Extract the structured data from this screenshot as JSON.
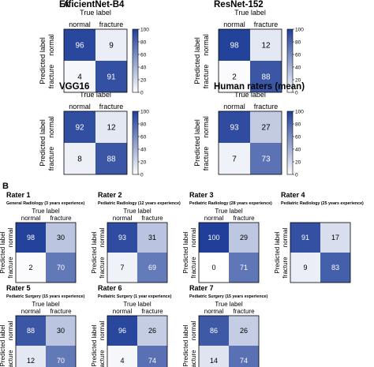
{
  "panels": {
    "a": "A",
    "b": "B"
  },
  "colors": {
    "low": "#ffffff",
    "high": "#1f3f99"
  },
  "chart_data": [
    {
      "type": "heatmap",
      "title": "EfficientNet-B4",
      "xlabel": "True label",
      "ylabel": "Predicted label",
      "x_categories": [
        "normal",
        "fracture"
      ],
      "y_categories": [
        "normal",
        "fracture"
      ],
      "values": [
        [
          96,
          9
        ],
        [
          4,
          91
        ]
      ],
      "colorbar_ticks": [
        0,
        20,
        40,
        60,
        80,
        100
      ],
      "vlim": [
        0,
        100
      ]
    },
    {
      "type": "heatmap",
      "title": "ResNet-152",
      "xlabel": "True label",
      "ylabel": "Predicted label",
      "x_categories": [
        "normal",
        "fracture"
      ],
      "y_categories": [
        "normal",
        "fracture"
      ],
      "values": [
        [
          98,
          12
        ],
        [
          2,
          88
        ]
      ],
      "colorbar_ticks": [
        0,
        20,
        40,
        60,
        80,
        100
      ],
      "vlim": [
        0,
        100
      ]
    },
    {
      "type": "heatmap",
      "title": "VGG16",
      "xlabel": "True label",
      "ylabel": "Predicted label",
      "x_categories": [
        "normal",
        "fracture"
      ],
      "y_categories": [
        "normal",
        "fracture"
      ],
      "values": [
        [
          92,
          12
        ],
        [
          8,
          88
        ]
      ],
      "colorbar_ticks": [
        0,
        20,
        40,
        60,
        80,
        100
      ],
      "vlim": [
        0,
        100
      ]
    },
    {
      "type": "heatmap",
      "title": "Human raters (mean)",
      "xlabel": "True label",
      "ylabel": "Predicted label",
      "x_categories": [
        "normal",
        "fracture"
      ],
      "y_categories": [
        "normal",
        "fracture"
      ],
      "values": [
        [
          93,
          27
        ],
        [
          7,
          73
        ]
      ],
      "colorbar_ticks": [
        0,
        20,
        40,
        60,
        80,
        100
      ],
      "vlim": [
        0,
        100
      ]
    },
    {
      "type": "heatmap",
      "title": "Rater 1",
      "subtitle": "General Radiology (3 years experience)",
      "xlabel": "True label",
      "ylabel": "Predicted label",
      "x_categories": [
        "normal",
        "fracture"
      ],
      "y_categories": [
        "normal",
        "fracture"
      ],
      "values": [
        [
          98,
          30
        ],
        [
          2,
          70
        ]
      ],
      "vlim": [
        0,
        100
      ]
    },
    {
      "type": "heatmap",
      "title": "Rater 2",
      "subtitle": "Pediatric Radiology (12 years experience)",
      "xlabel": "True label",
      "ylabel": "Predicted label",
      "x_categories": [
        "normal",
        "fracture"
      ],
      "y_categories": [
        "normal",
        "fracture"
      ],
      "values": [
        [
          93,
          31
        ],
        [
          7,
          69
        ]
      ],
      "vlim": [
        0,
        100
      ]
    },
    {
      "type": "heatmap",
      "title": "Rater 3",
      "subtitle": "Pediatric Radiology (28 years experience)",
      "xlabel": "True label",
      "ylabel": "Predicted label",
      "x_categories": [
        "normal",
        "fracture"
      ],
      "y_categories": [
        "normal",
        "fracture"
      ],
      "values": [
        [
          100,
          29
        ],
        [
          0,
          71
        ]
      ],
      "vlim": [
        0,
        100
      ]
    },
    {
      "type": "heatmap",
      "title": "Rater 4",
      "subtitle": "Pediatric Radiology (25 years experience)",
      "xlabel": "",
      "ylabel": "Predicted label",
      "x_categories": [],
      "y_categories": [
        "normal",
        "fracture"
      ],
      "values": [
        [
          91,
          17
        ],
        [
          9,
          83
        ]
      ],
      "vlim": [
        0,
        100
      ]
    },
    {
      "type": "heatmap",
      "title": "Rater 5",
      "subtitle": "Pediatric Surgery (15 years experience)",
      "xlabel": "True label",
      "ylabel": "Predicted label",
      "x_categories": [
        "normal",
        "fracture"
      ],
      "y_categories": [
        "normal",
        "fracture"
      ],
      "values": [
        [
          88,
          30
        ],
        [
          12,
          70
        ]
      ],
      "vlim": [
        0,
        100
      ]
    },
    {
      "type": "heatmap",
      "title": "Rater 6",
      "subtitle": "Pediatric Surgery (1 year experience)",
      "xlabel": "True label",
      "ylabel": "Predicted label",
      "x_categories": [
        "normal",
        "fracture"
      ],
      "y_categories": [
        "normal",
        "fracture"
      ],
      "values": [
        [
          96,
          26
        ],
        [
          4,
          74
        ]
      ],
      "vlim": [
        0,
        100
      ]
    },
    {
      "type": "heatmap",
      "title": "Rater 7",
      "subtitle": "Pediatric Surgery (15 years experience)",
      "xlabel": "True label",
      "ylabel": "Predicted label",
      "x_categories": [
        "normal",
        "fracture"
      ],
      "y_categories": [
        "normal",
        "fracture"
      ],
      "values": [
        [
          86,
          26
        ],
        [
          14,
          74
        ]
      ],
      "vlim": [
        0,
        100
      ]
    }
  ]
}
